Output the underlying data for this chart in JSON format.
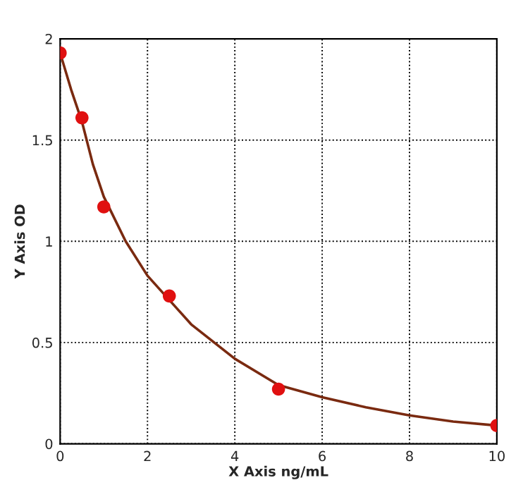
{
  "chart_data": {
    "type": "scatter",
    "xlabel": "X Axis ng/mL",
    "ylabel": "Y Axis OD",
    "xlim": [
      0,
      10
    ],
    "ylim": [
      0,
      2
    ],
    "xticks": [
      0,
      2,
      4,
      6,
      8,
      10
    ],
    "yticks": [
      0,
      0.5,
      1,
      1.5,
      2
    ],
    "grid": true,
    "series": [
      {
        "type": "line",
        "color": "#7a2a10",
        "marker": "none",
        "x": [
          0,
          0.25,
          0.5,
          0.75,
          1,
          1.5,
          2,
          3,
          4,
          5,
          6,
          7,
          8,
          9,
          10
        ],
        "values": [
          1.93,
          1.75,
          1.59,
          1.38,
          1.22,
          1.0,
          0.83,
          0.59,
          0.42,
          0.29,
          0.23,
          0.18,
          0.14,
          0.11,
          0.09
        ]
      },
      {
        "color": "#e01010",
        "marker": "circle",
        "x": [
          0,
          0.5,
          1,
          2.5,
          5,
          10
        ],
        "values": [
          1.93,
          1.61,
          1.17,
          0.73,
          0.27,
          0.09
        ]
      }
    ]
  }
}
